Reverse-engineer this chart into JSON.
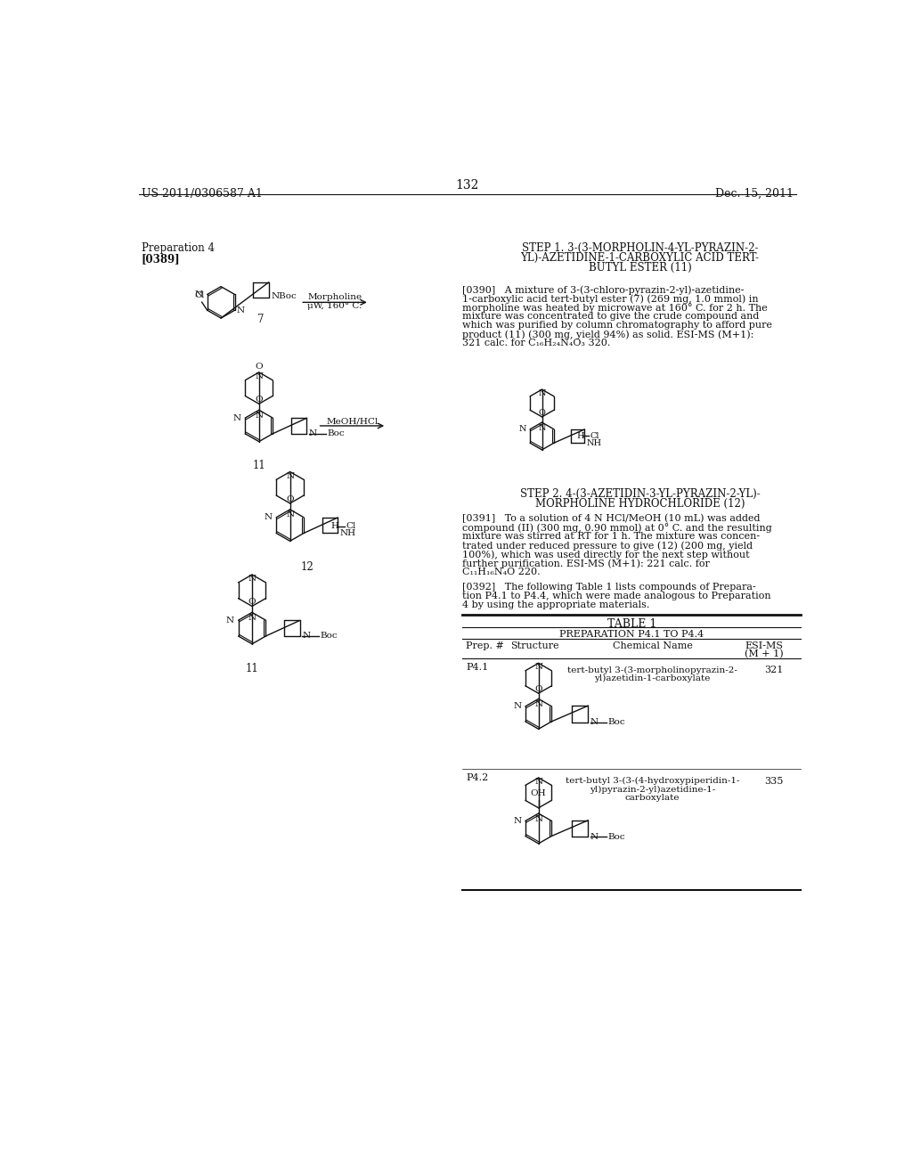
{
  "bg_color": "#ffffff",
  "header_left": "US 2011/0306587 A1",
  "header_right": "Dec. 15, 2011",
  "page_number": "132",
  "prep_label": "Preparation 4",
  "ref_label": "[0389]",
  "step1_title_lines": [
    "STEP 1. 3-(3-MORPHOLIN-4-YL-PYRAZIN-2-",
    "YL)-AZETIDINE-1-CARBOXYLIC ACID TERT-",
    "BUTYL ESTER (11)"
  ],
  "step2_title_lines": [
    "STEP 2. 4-(3-AZETIDIN-3-YL-PYRAZIN-2-YL)-",
    "MORPHOLINE HYDROCHLORIDE (12)"
  ],
  "p390_lines": [
    "[0390]   A mixture of 3-(3-chloro-pyrazin-2-yl)-azetidine-",
    "1-carboxylic acid tert-butyl ester (7) (269 mg, 1.0 mmol) in",
    "morpholine was heated by microwave at 160° C. for 2 h. The",
    "mixture was concentrated to give the crude compound and",
    "which was purified by column chromatography to afford pure",
    "product (11) (300 mg, yield 94%) as solid. ESI-MS (M+1):",
    "321 calc. for C₁₆H₂₄N₄O₃ 320."
  ],
  "p391_lines": [
    "[0391]   To a solution of 4 N HCl/MeOH (10 mL) was added",
    "compound (II) (300 mg, 0.90 mmol) at 0° C. and the resulting",
    "mixture was stirred at RT for 1 h. The mixture was concen-",
    "trated under reduced pressure to give (12) (200 mg, yield",
    "100%), which was used directly for the next step without",
    "further purification. ESI-MS (M+1): 221 calc. for",
    "C₁₁H₁₆N₄O 220."
  ],
  "p392_lines": [
    "[0392]   The following Table 1 lists compounds of Prepara-",
    "tion P4.1 to P4.4, which were made analogous to Preparation",
    "4 by using the appropriate materials."
  ],
  "table_title": "TABLE 1",
  "table_subtitle": "PREPARATION P4.1 TO P4.4",
  "col_prep": "Prep. #",
  "col_struct": "Structure",
  "col_name": "Chemical Name",
  "col_esi1": "ESI-MS",
  "col_esi2": "(M + 1)",
  "row1_prep": "P4.1",
  "row1_name1": "tert-butyl 3-(3-morpholinopyrazin-2-",
  "row1_name2": "yl)azetidin-1-carboxylate",
  "row1_esi": "321",
  "row2_prep": "P4.2",
  "row2_name1": "tert-butyl 3-(3-(4-hydroxypiperidin-1-",
  "row2_name2": "yl)pyrazin-2-yl)azetidine-1-",
  "row2_name3": "carboxylate",
  "row2_esi": "335",
  "arrow1_label1": "Morpholine",
  "arrow1_label2": "μW, 160° C.",
  "arrow2_label": "MeOH/HCl",
  "label7": "7",
  "label11": "11",
  "label12": "12"
}
